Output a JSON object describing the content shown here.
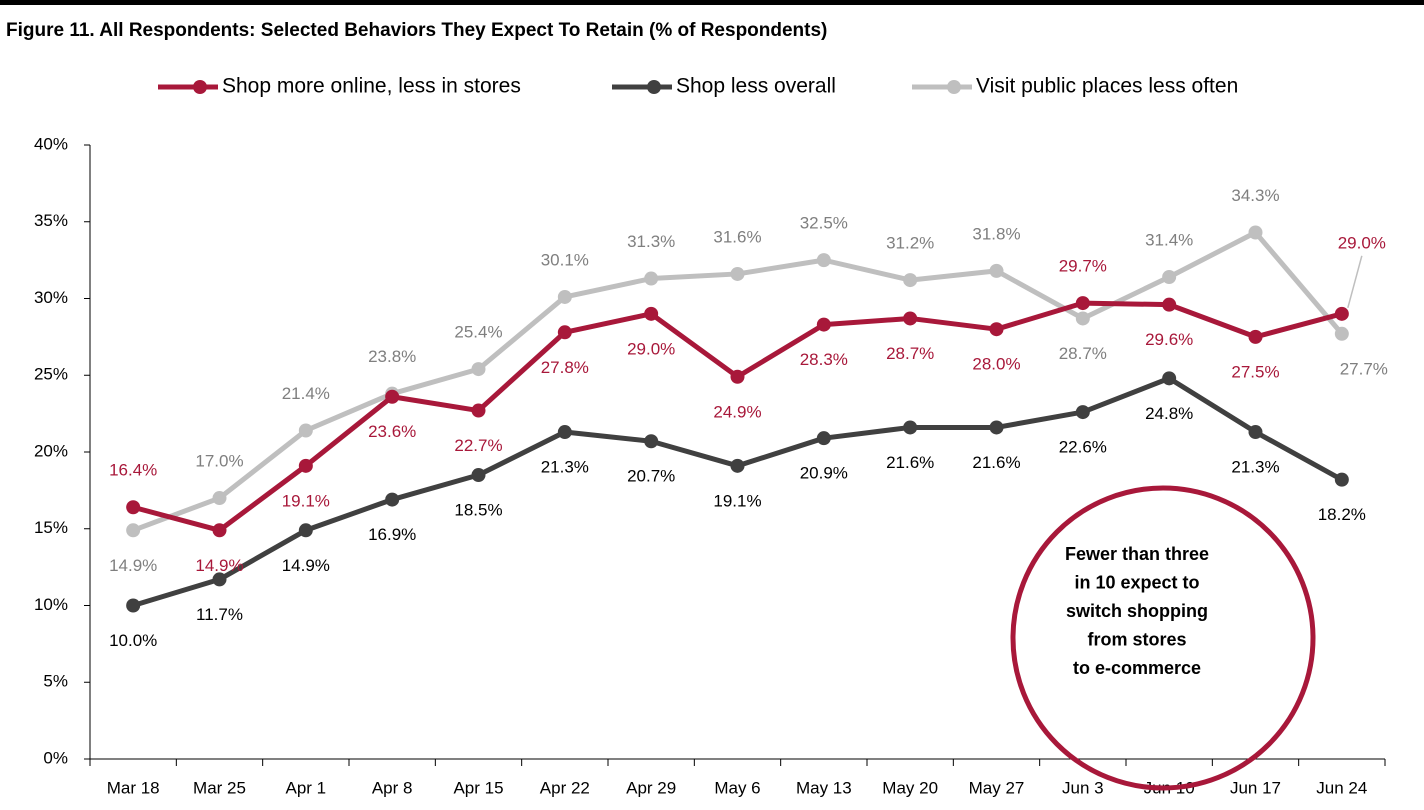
{
  "chart_data": {
    "type": "line",
    "title": "Figure 11. All Respondents: Selected Behaviors They Expect To Retain (% of Respondents)",
    "categories": [
      "Mar 18",
      "Mar 25",
      "Apr 1",
      "Apr 8",
      "Apr 15",
      "Apr 22",
      "Apr 29",
      "May 6",
      "May 13",
      "May 20",
      "May 27",
      "Jun 3",
      "Jun 10",
      "Jun 17",
      "Jun 24"
    ],
    "series": [
      {
        "name": "Shop more online, less in stores",
        "color": "#a8183a",
        "label_color": "#a8183a",
        "values": [
          16.4,
          14.9,
          19.1,
          23.6,
          22.7,
          27.8,
          29.0,
          24.9,
          28.3,
          28.7,
          28.0,
          29.7,
          29.6,
          27.5,
          29.0
        ],
        "value_labels": [
          "16.4%",
          "14.9%",
          "19.1%",
          "23.6%",
          "22.7%",
          "27.8%",
          "29.0%",
          "24.9%",
          "28.3%",
          "28.7%",
          "28.0%",
          "29.7%",
          "29.6%",
          "27.5%",
          "29.0%"
        ]
      },
      {
        "name": "Shop less overall",
        "color": "#404040",
        "label_color": "#000000",
        "values": [
          10.0,
          11.7,
          14.9,
          16.9,
          18.5,
          21.3,
          20.7,
          19.1,
          20.9,
          21.6,
          21.6,
          22.6,
          24.8,
          21.3,
          18.2
        ],
        "value_labels": [
          "10.0%",
          "11.7%",
          "14.9%",
          "16.9%",
          "18.5%",
          "21.3%",
          "20.7%",
          "19.1%",
          "20.9%",
          "21.6%",
          "21.6%",
          "22.6%",
          "24.8%",
          "21.3%",
          "18.2%"
        ]
      },
      {
        "name": "Visit public places less often",
        "color": "#bfbfbf",
        "label_color": "#7f7f7f",
        "values": [
          14.9,
          17.0,
          21.4,
          23.8,
          25.4,
          30.1,
          31.3,
          31.6,
          32.5,
          31.2,
          31.8,
          28.7,
          31.4,
          34.3,
          27.7
        ],
        "value_labels": [
          "14.9%",
          "17.0%",
          "21.4%",
          "23.8%",
          "25.4%",
          "30.1%",
          "31.3%",
          "31.6%",
          "32.5%",
          "31.2%",
          "31.8%",
          "28.7%",
          "31.4%",
          "34.3%",
          "27.7%"
        ]
      }
    ],
    "ylim": [
      0,
      40
    ],
    "yticks": [
      {
        "value": 0,
        "label": "0%"
      },
      {
        "value": 5,
        "label": "5%"
      },
      {
        "value": 10,
        "label": "10%"
      },
      {
        "value": 15,
        "label": "15%"
      },
      {
        "value": 20,
        "label": "20%"
      },
      {
        "value": 25,
        "label": "25%"
      },
      {
        "value": 30,
        "label": "30%"
      },
      {
        "value": 35,
        "label": "35%"
      },
      {
        "value": 40,
        "label": "40%"
      }
    ],
    "grid": false,
    "legend": "top",
    "annotation": [
      "Fewer than three",
      "in  10 expect to",
      "switch shopping",
      "from stores",
      "to e-commerce"
    ],
    "annotation_color": "#a8183a"
  }
}
